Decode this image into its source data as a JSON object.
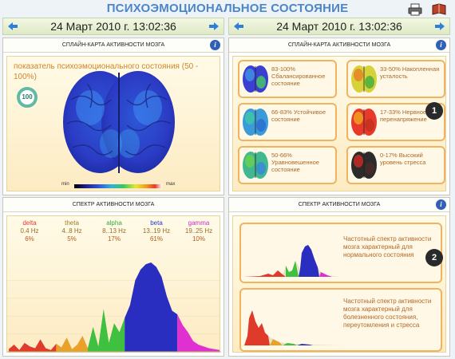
{
  "header": {
    "title": "ПСИХОЭМОЦИОНАЛЬНОЕ СОСТОЯНИЕ",
    "date_left": "24 Март 2010 г. 13:02:36",
    "date_right": "24 Март 2010 г. 13:02:36"
  },
  "panel_spline_left": {
    "title": "СПЛАЙН-КАРТА АКТИВНОСТИ МОЗГА",
    "indicator_text": "показатель психоэмоционального состояния (50 - 100%)",
    "indicator_value": "100",
    "scale_min": "min",
    "scale_max": "max"
  },
  "panel_spline_right": {
    "title": "СПЛАЙН-КАРТА АКТИВНОСТИ МОЗГА",
    "badge": "1",
    "states": [
      {
        "text": "83-100% Сбалансированное состояние",
        "palette": [
          "#3a3fd0",
          "#3f8fe8",
          "#49c46a"
        ]
      },
      {
        "text": "33-50% Накопленная усталость",
        "palette": [
          "#d8d23a",
          "#e8822a",
          "#48b040"
        ]
      },
      {
        "text": "66-83% Устойчивое состояние",
        "palette": [
          "#3a9bd8",
          "#41c6a8",
          "#2c6ed0"
        ]
      },
      {
        "text": "17-33% Нервное перенапряжение",
        "palette": [
          "#e83a2a",
          "#f0a020",
          "#c43020"
        ]
      },
      {
        "text": "50-66% Уравновешенное состояние",
        "palette": [
          "#41b890",
          "#6ad04e",
          "#3a8ad8"
        ]
      },
      {
        "text": "0-17% Высокий уровень стресса",
        "palette": [
          "#2b2b2b",
          "#c82a22",
          "#4a2a2a"
        ]
      }
    ]
  },
  "panel_spectrum_left": {
    "title": "СПЕКТР АКТИВНОСТИ МОЗГА",
    "bands": [
      {
        "name": "delta",
        "range": "0.4 Hz",
        "pct": "6%",
        "color": "#e03a2a"
      },
      {
        "name": "theta",
        "range": "4..8 Hz",
        "pct": "5%",
        "color": "#a07a2a"
      },
      {
        "name": "alpha",
        "range": "8..13 Hz",
        "pct": "17%",
        "color": "#3aa838"
      },
      {
        "name": "beta",
        "range": "13..19 Hz",
        "pct": "61%",
        "color": "#2a3ac0"
      },
      {
        "name": "gamma",
        "range": "19..25 Hz",
        "pct": "10%",
        "color": "#c830c0"
      }
    ]
  },
  "panel_spectrum_right": {
    "title": "СПЕКТР АКТИВНОСТИ МОЗГА",
    "badge": "2",
    "normal_text": "Частотный спектр активности мозга характерный для нормального состояния",
    "disease_text": "Частотный спектр активности мозга характерный для болезненного состояния, переутомления и стресса"
  },
  "chart_data": {
    "type": "area",
    "title": "СПЕКТР АКТИВНОСТИ МОЗГА",
    "xlabel": "",
    "ylabel": "",
    "x": [
      0,
      1,
      2,
      3,
      4,
      5,
      6,
      7,
      8,
      9,
      10,
      11,
      12,
      13,
      14,
      15,
      16,
      17,
      18,
      19,
      20,
      21,
      22,
      23,
      24,
      25,
      26,
      27,
      28,
      29,
      30,
      31,
      32,
      33,
      34,
      35,
      36,
      37,
      38,
      39,
      40
    ],
    "series": [
      {
        "name": "",
        "values": [
          3,
          8,
          2,
          10,
          6,
          4,
          14,
          4,
          2,
          9,
          5,
          16,
          3,
          8,
          18,
          4,
          28,
          6,
          48,
          10,
          32,
          22,
          38,
          52,
          80,
          92,
          98,
          100,
          95,
          84,
          62,
          46,
          42,
          30,
          22,
          12,
          8,
          6,
          4,
          3,
          2
        ]
      }
    ],
    "bands": [
      "delta",
      "theta",
      "alpha",
      "beta",
      "gamma"
    ],
    "band_ranges": [
      [
        0,
        9
      ],
      [
        9,
        15
      ],
      [
        15,
        22
      ],
      [
        22,
        32
      ],
      [
        32,
        40
      ]
    ],
    "band_colors": [
      "#e03a2a",
      "#e8a22a",
      "#3fc040",
      "#2a2ec0",
      "#e030d0"
    ]
  }
}
